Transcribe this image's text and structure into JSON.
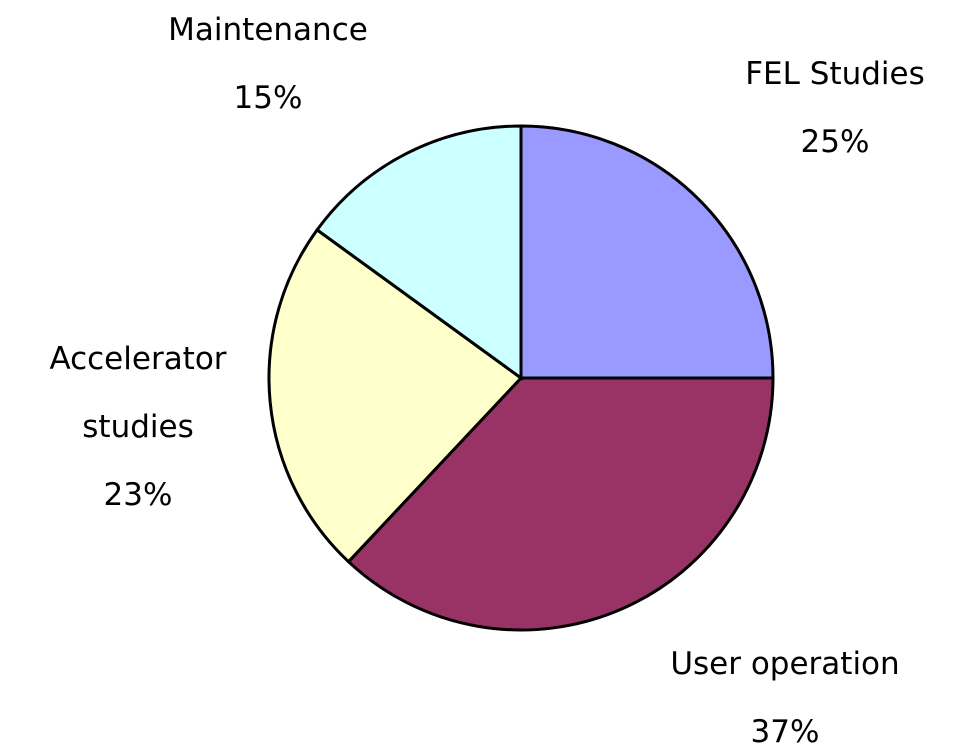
{
  "chart_data": {
    "type": "pie",
    "categories": [
      "FEL Studies",
      "User operation",
      "Accelerator studies",
      "Maintenance"
    ],
    "values": [
      25,
      37,
      23,
      15
    ],
    "value_labels": [
      "25%",
      "37%",
      "23%",
      "15%"
    ],
    "colors": [
      "#9999ff",
      "#993366",
      "#ffffcc",
      "#ccffff"
    ]
  }
}
